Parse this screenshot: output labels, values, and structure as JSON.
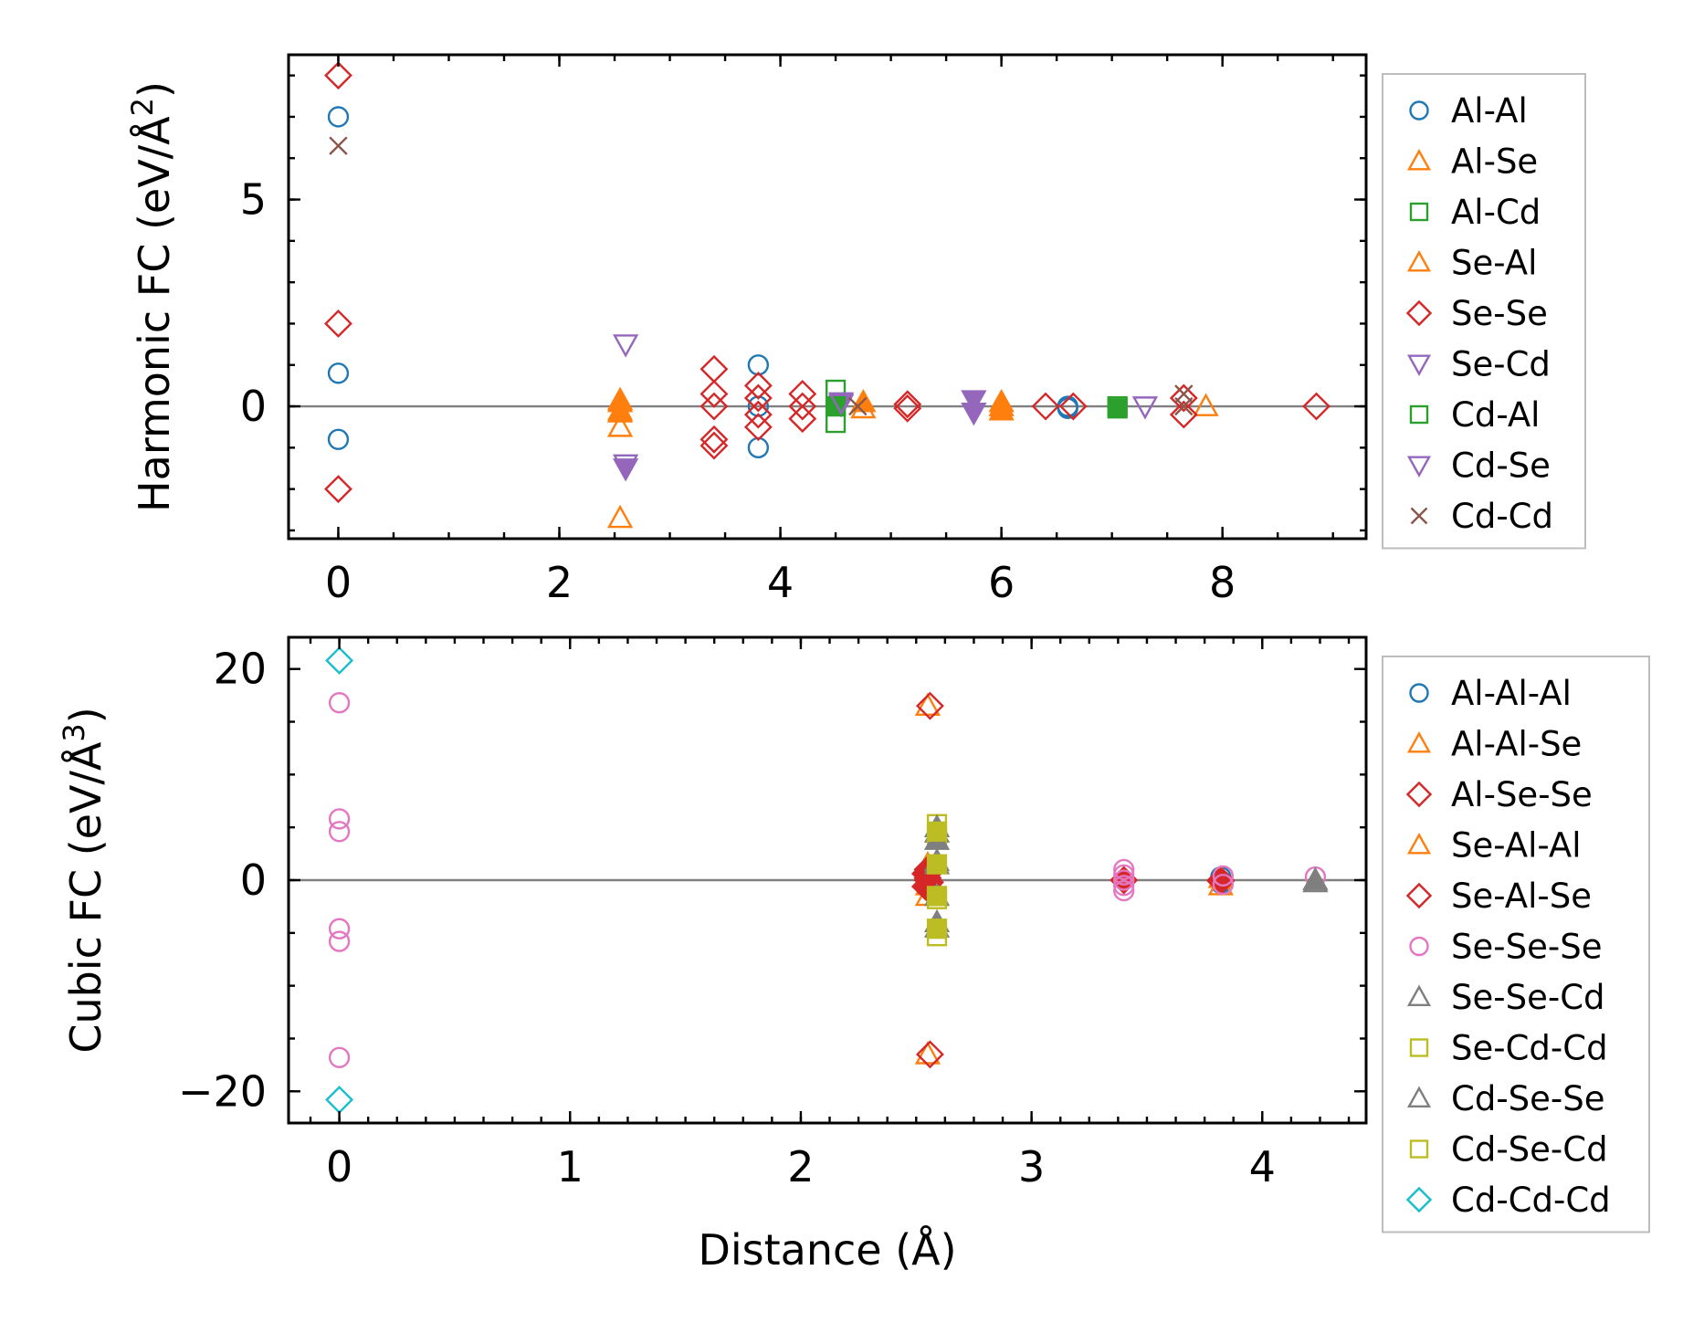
{
  "chart_data": [
    {
      "type": "scatter",
      "ylabel": "Harmonic FC (eV/Å",
      "ylabel_sup": "2",
      "ylabel_tail": ")",
      "xlabel": "",
      "xlim": [
        -0.45,
        9.3
      ],
      "ylim": [
        -3.2,
        8.5
      ],
      "xticks": [
        0,
        2,
        4,
        6,
        8
      ],
      "xtick_labels": [
        "0",
        "2",
        "4",
        "6",
        "8"
      ],
      "yticks": [
        0,
        5
      ],
      "ytick_labels": [
        "0",
        "5"
      ],
      "zero_line": true,
      "legend_position": "right",
      "series": [
        {
          "name": "Al-Al",
          "marker": "circle",
          "color": "#1f77b4",
          "fill": false,
          "points": [
            [
              0,
              7.0
            ],
            [
              0,
              0.8
            ],
            [
              0,
              -0.8
            ],
            [
              3.8,
              1.0
            ],
            [
              3.8,
              -1.0
            ],
            [
              3.8,
              0.0
            ],
            [
              6.6,
              0.0
            ],
            [
              6.6,
              -0.05
            ]
          ]
        },
        {
          "name": "Al-Se",
          "marker": "triangle-up",
          "color": "#ff7f0e",
          "fill": false,
          "points": [
            [
              2.55,
              0.1
            ],
            [
              2.55,
              -0.1
            ],
            [
              2.55,
              -0.5
            ],
            [
              2.55,
              -2.7
            ],
            [
              4.75,
              -0.05
            ],
            [
              6.0,
              0.0
            ],
            [
              7.85,
              0.0
            ]
          ]
        },
        {
          "name": "Al-Cd",
          "marker": "square",
          "color": "#2ca02c",
          "fill": false,
          "points": [
            [
              4.5,
              0.4
            ],
            [
              4.5,
              -0.4
            ],
            [
              4.5,
              0.0
            ],
            [
              7.05,
              0.0
            ]
          ]
        },
        {
          "name": "Se-Al",
          "marker": "triangle-up",
          "color": "#ff7f0e",
          "fill": true,
          "points": [
            [
              2.55,
              0.15
            ],
            [
              2.55,
              -0.15
            ],
            [
              4.75,
              0.1
            ],
            [
              6.0,
              0.1
            ],
            [
              6.0,
              -0.1
            ]
          ]
        },
        {
          "name": "Se-Se",
          "marker": "diamond",
          "color": "#d62728",
          "fill": false,
          "points": [
            [
              0,
              8.0
            ],
            [
              0,
              2.0
            ],
            [
              0,
              -2.0
            ],
            [
              3.4,
              0.9
            ],
            [
              3.4,
              0.3
            ],
            [
              3.4,
              0.0
            ],
            [
              3.4,
              -0.8
            ],
            [
              3.4,
              -0.95
            ],
            [
              3.8,
              0.5
            ],
            [
              3.8,
              0.2
            ],
            [
              3.8,
              -0.2
            ],
            [
              3.8,
              -0.5
            ],
            [
              4.2,
              0.3
            ],
            [
              4.2,
              -0.3
            ],
            [
              4.2,
              0.0
            ],
            [
              5.15,
              0.05
            ],
            [
              5.15,
              -0.05
            ],
            [
              6.4,
              0.0
            ],
            [
              6.65,
              0.0
            ],
            [
              7.65,
              0.2
            ],
            [
              7.65,
              -0.2
            ],
            [
              8.85,
              0.0
            ]
          ]
        },
        {
          "name": "Se-Cd",
          "marker": "triangle-down",
          "color": "#9467bd",
          "fill": true,
          "points": [
            [
              2.6,
              -1.5
            ],
            [
              4.55,
              0.05
            ],
            [
              5.75,
              0.15
            ],
            [
              5.75,
              -0.15
            ]
          ]
        },
        {
          "name": "Cd-Al",
          "marker": "square",
          "color": "#2ca02c",
          "fill": true,
          "points": [
            [
              4.5,
              0.0
            ],
            [
              7.05,
              -0.05
            ]
          ]
        },
        {
          "name": "Cd-Se",
          "marker": "triangle-down",
          "color": "#9467bd",
          "fill": false,
          "points": [
            [
              2.6,
              1.5
            ],
            [
              2.6,
              -1.4
            ],
            [
              4.55,
              0.1
            ],
            [
              7.3,
              0.0
            ]
          ]
        },
        {
          "name": "Cd-Cd",
          "marker": "x",
          "color": "#8c564b",
          "fill": false,
          "points": [
            [
              0,
              6.3
            ],
            [
              4.7,
              0.0
            ],
            [
              7.65,
              0.3
            ],
            [
              7.65,
              0.0
            ]
          ]
        }
      ]
    },
    {
      "type": "scatter",
      "ylabel": "Cubic FC (eV/Å",
      "ylabel_sup": "3",
      "ylabel_tail": ")",
      "xlabel": "Distance (Å)",
      "xlim": [
        -0.22,
        4.45
      ],
      "ylim": [
        -23,
        23
      ],
      "xticks": [
        0,
        1,
        2,
        3,
        4
      ],
      "xtick_labels": [
        "0",
        "1",
        "2",
        "3",
        "4"
      ],
      "yticks": [
        -20,
        0,
        20
      ],
      "ytick_labels": [
        "−20",
        "0",
        "20"
      ],
      "zero_line": true,
      "legend_position": "right",
      "series": [
        {
          "name": "Al-Al-Al",
          "marker": "circle",
          "color": "#1f77b4",
          "fill": false,
          "points": [
            [
              3.82,
              0.3
            ],
            [
              3.82,
              -0.3
            ]
          ]
        },
        {
          "name": "Al-Al-Se",
          "marker": "triangle-up",
          "color": "#ff7f0e",
          "fill": false,
          "points": [
            [
              2.55,
              16.5
            ],
            [
              2.55,
              -16.5
            ],
            [
              2.55,
              1.5
            ],
            [
              2.55,
              -1.5
            ],
            [
              3.82,
              -0.5
            ]
          ]
        },
        {
          "name": "Al-Se-Se",
          "marker": "diamond",
          "color": "#d62728",
          "fill": false,
          "points": [
            [
              2.56,
              16.5
            ],
            [
              2.56,
              -16.5
            ],
            [
              2.56,
              0.8
            ],
            [
              2.56,
              -0.8
            ],
            [
              3.4,
              0.0
            ],
            [
              3.82,
              0.0
            ]
          ]
        },
        {
          "name": "Se-Al-Al",
          "marker": "triangle-up",
          "color": "#ff7f0e",
          "fill": true,
          "points": [
            [
              2.55,
              0.5
            ],
            [
              2.55,
              -0.5
            ],
            [
              3.82,
              0.2
            ]
          ]
        },
        {
          "name": "Se-Al-Se",
          "marker": "diamond",
          "color": "#d62728",
          "fill": true,
          "points": [
            [
              2.54,
              0.6
            ],
            [
              2.55,
              0.2
            ],
            [
              2.56,
              -0.2
            ],
            [
              2.54,
              -0.6
            ],
            [
              2.55,
              1.0
            ],
            [
              2.56,
              -1.0
            ],
            [
              2.55,
              0.0
            ],
            [
              3.4,
              0.0
            ],
            [
              3.82,
              -0.1
            ]
          ]
        },
        {
          "name": "Se-Se-Se",
          "marker": "circle",
          "color": "#e377c2",
          "fill": false,
          "points": [
            [
              0,
              16.8
            ],
            [
              0,
              5.8
            ],
            [
              0,
              4.6
            ],
            [
              0,
              -4.6
            ],
            [
              0,
              -5.8
            ],
            [
              0,
              -16.8
            ],
            [
              3.4,
              1.0
            ],
            [
              3.4,
              0.5
            ],
            [
              3.4,
              0.0
            ],
            [
              3.4,
              -0.5
            ],
            [
              3.4,
              -1.0
            ],
            [
              3.83,
              0.4
            ],
            [
              3.83,
              -0.4
            ],
            [
              4.23,
              0.3
            ]
          ]
        },
        {
          "name": "Se-Se-Cd",
          "marker": "triangle-up",
          "color": "#7f7f7f",
          "fill": false,
          "points": [
            [
              2.59,
              4.5
            ],
            [
              2.59,
              1.5
            ],
            [
              2.59,
              -1.5
            ],
            [
              2.59,
              -4.5
            ],
            [
              4.23,
              -0.2
            ]
          ]
        },
        {
          "name": "Se-Cd-Cd",
          "marker": "square",
          "color": "#bcbd22",
          "fill": false,
          "points": [
            [
              2.59,
              5.3
            ],
            [
              2.59,
              4.0
            ],
            [
              2.59,
              -1.8
            ],
            [
              2.59,
              -5.3
            ]
          ]
        },
        {
          "name": "Cd-Se-Se",
          "marker": "triangle-up",
          "color": "#7f7f7f",
          "fill": true,
          "points": [
            [
              2.59,
              5.0
            ],
            [
              2.59,
              3.8
            ],
            [
              2.59,
              1.8
            ],
            [
              2.59,
              -4.0
            ],
            [
              4.23,
              0.0
            ]
          ]
        },
        {
          "name": "Cd-Se-Cd",
          "marker": "square",
          "color": "#bcbd22",
          "fill": true,
          "points": [
            [
              2.59,
              4.6
            ],
            [
              2.59,
              1.5
            ],
            [
              2.59,
              -1.5
            ],
            [
              2.59,
              -4.6
            ]
          ]
        },
        {
          "name": "Cd-Cd-Cd",
          "marker": "diamond",
          "color": "#17becf",
          "fill": false,
          "points": [
            [
              0,
              20.8
            ],
            [
              0,
              -20.8
            ]
          ]
        }
      ]
    }
  ]
}
